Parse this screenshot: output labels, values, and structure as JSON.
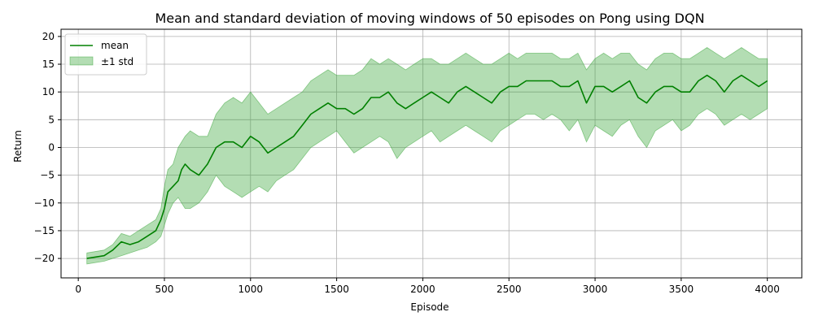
{
  "chart_data": {
    "type": "line",
    "title": "Mean and standard deviation of moving windows of 50 episodes on Pong using DQN",
    "xlabel": "Episode",
    "ylabel": "Return",
    "xlim": [
      -100,
      4200
    ],
    "ylim": [
      -23.5,
      21.3
    ],
    "xticks": [
      0,
      500,
      1000,
      1500,
      2000,
      2500,
      3000,
      3500,
      4000
    ],
    "yticks": [
      -20,
      -15,
      -10,
      -5,
      0,
      5,
      10,
      15,
      20
    ],
    "grid": true,
    "legend_position": "top-left",
    "series": [
      {
        "name": "mean",
        "color": "#008000",
        "x": [
          50,
          150,
          200,
          250,
          300,
          350,
          400,
          450,
          480,
          500,
          520,
          550,
          580,
          600,
          620,
          650,
          700,
          750,
          800,
          850,
          900,
          950,
          1000,
          1050,
          1100,
          1150,
          1200,
          1250,
          1300,
          1350,
          1400,
          1450,
          1500,
          1550,
          1600,
          1650,
          1700,
          1750,
          1800,
          1850,
          1900,
          1950,
          2000,
          2050,
          2100,
          2150,
          2200,
          2250,
          2300,
          2350,
          2400,
          2450,
          2500,
          2550,
          2600,
          2650,
          2700,
          2750,
          2800,
          2850,
          2900,
          2950,
          3000,
          3050,
          3100,
          3150,
          3200,
          3250,
          3300,
          3350,
          3400,
          3450,
          3500,
          3550,
          3600,
          3650,
          3700,
          3750,
          3800,
          3850,
          3900,
          3950,
          4000
        ],
        "y": [
          -20,
          -19.5,
          -18.5,
          -17,
          -17.5,
          -17,
          -16,
          -15,
          -13,
          -11,
          -8,
          -7,
          -6,
          -4,
          -3,
          -4,
          -5,
          -3,
          0,
          1,
          1,
          0,
          2,
          1,
          -1,
          0,
          1,
          2,
          4,
          6,
          7,
          8,
          7,
          7,
          6,
          7,
          9,
          9,
          10,
          8,
          7,
          8,
          9,
          10,
          9,
          8,
          10,
          11,
          10,
          9,
          8,
          10,
          11,
          11,
          12,
          12,
          12,
          12,
          11,
          11,
          12,
          8,
          11,
          11,
          10,
          11,
          12,
          9,
          8,
          10,
          11,
          11,
          10,
          10,
          12,
          13,
          12,
          10,
          12,
          13,
          12,
          11,
          12
        ]
      },
      {
        "name": "±1 std",
        "color": "#2ca02c",
        "x": [
          50,
          150,
          200,
          250,
          300,
          350,
          400,
          450,
          480,
          500,
          520,
          550,
          580,
          600,
          620,
          650,
          700,
          750,
          800,
          850,
          900,
          950,
          1000,
          1050,
          1100,
          1150,
          1200,
          1250,
          1300,
          1350,
          1400,
          1450,
          1500,
          1550,
          1600,
          1650,
          1700,
          1750,
          1800,
          1850,
          1900,
          1950,
          2000,
          2050,
          2100,
          2150,
          2200,
          2250,
          2300,
          2350,
          2400,
          2450,
          2500,
          2550,
          2600,
          2650,
          2700,
          2750,
          2800,
          2850,
          2900,
          2950,
          3000,
          3050,
          3100,
          3150,
          3200,
          3250,
          3300,
          3350,
          3400,
          3450,
          3500,
          3550,
          3600,
          3650,
          3700,
          3750,
          3800,
          3850,
          3900,
          3950,
          4000
        ],
        "lower": [
          -21,
          -20.5,
          -20,
          -19.5,
          -19,
          -18.5,
          -18,
          -17,
          -16,
          -14,
          -12,
          -10,
          -9,
          -10,
          -11,
          -11,
          -10,
          -8,
          -5,
          -7,
          -8,
          -9,
          -8,
          -7,
          -8,
          -6,
          -5,
          -4,
          -2,
          0,
          1,
          2,
          3,
          1,
          -1,
          0,
          1,
          2,
          1,
          -2,
          0,
          1,
          2,
          3,
          1,
          2,
          3,
          4,
          3,
          2,
          1,
          3,
          4,
          5,
          6,
          6,
          5,
          6,
          5,
          3,
          5,
          1,
          4,
          3,
          2,
          4,
          5,
          2,
          0,
          3,
          4,
          5,
          3,
          4,
          6,
          7,
          6,
          4,
          5,
          6,
          5,
          6,
          7
        ],
        "upper": [
          -19,
          -18.5,
          -17.5,
          -15.5,
          -16,
          -15,
          -14,
          -13,
          -11,
          -7,
          -4,
          -3,
          0,
          1,
          2,
          3,
          2,
          2,
          6,
          8,
          9,
          8,
          10,
          8,
          6,
          7,
          8,
          9,
          10,
          12,
          13,
          14,
          13,
          13,
          13,
          14,
          16,
          15,
          16,
          15,
          14,
          15,
          16,
          16,
          15,
          15,
          16,
          17,
          16,
          15,
          15,
          16,
          17,
          16,
          17,
          17,
          17,
          17,
          16,
          16,
          17,
          14,
          16,
          17,
          16,
          17,
          17,
          15,
          14,
          16,
          17,
          17,
          16,
          16,
          17,
          18,
          17,
          16,
          17,
          18,
          17,
          16,
          16
        ]
      }
    ]
  }
}
